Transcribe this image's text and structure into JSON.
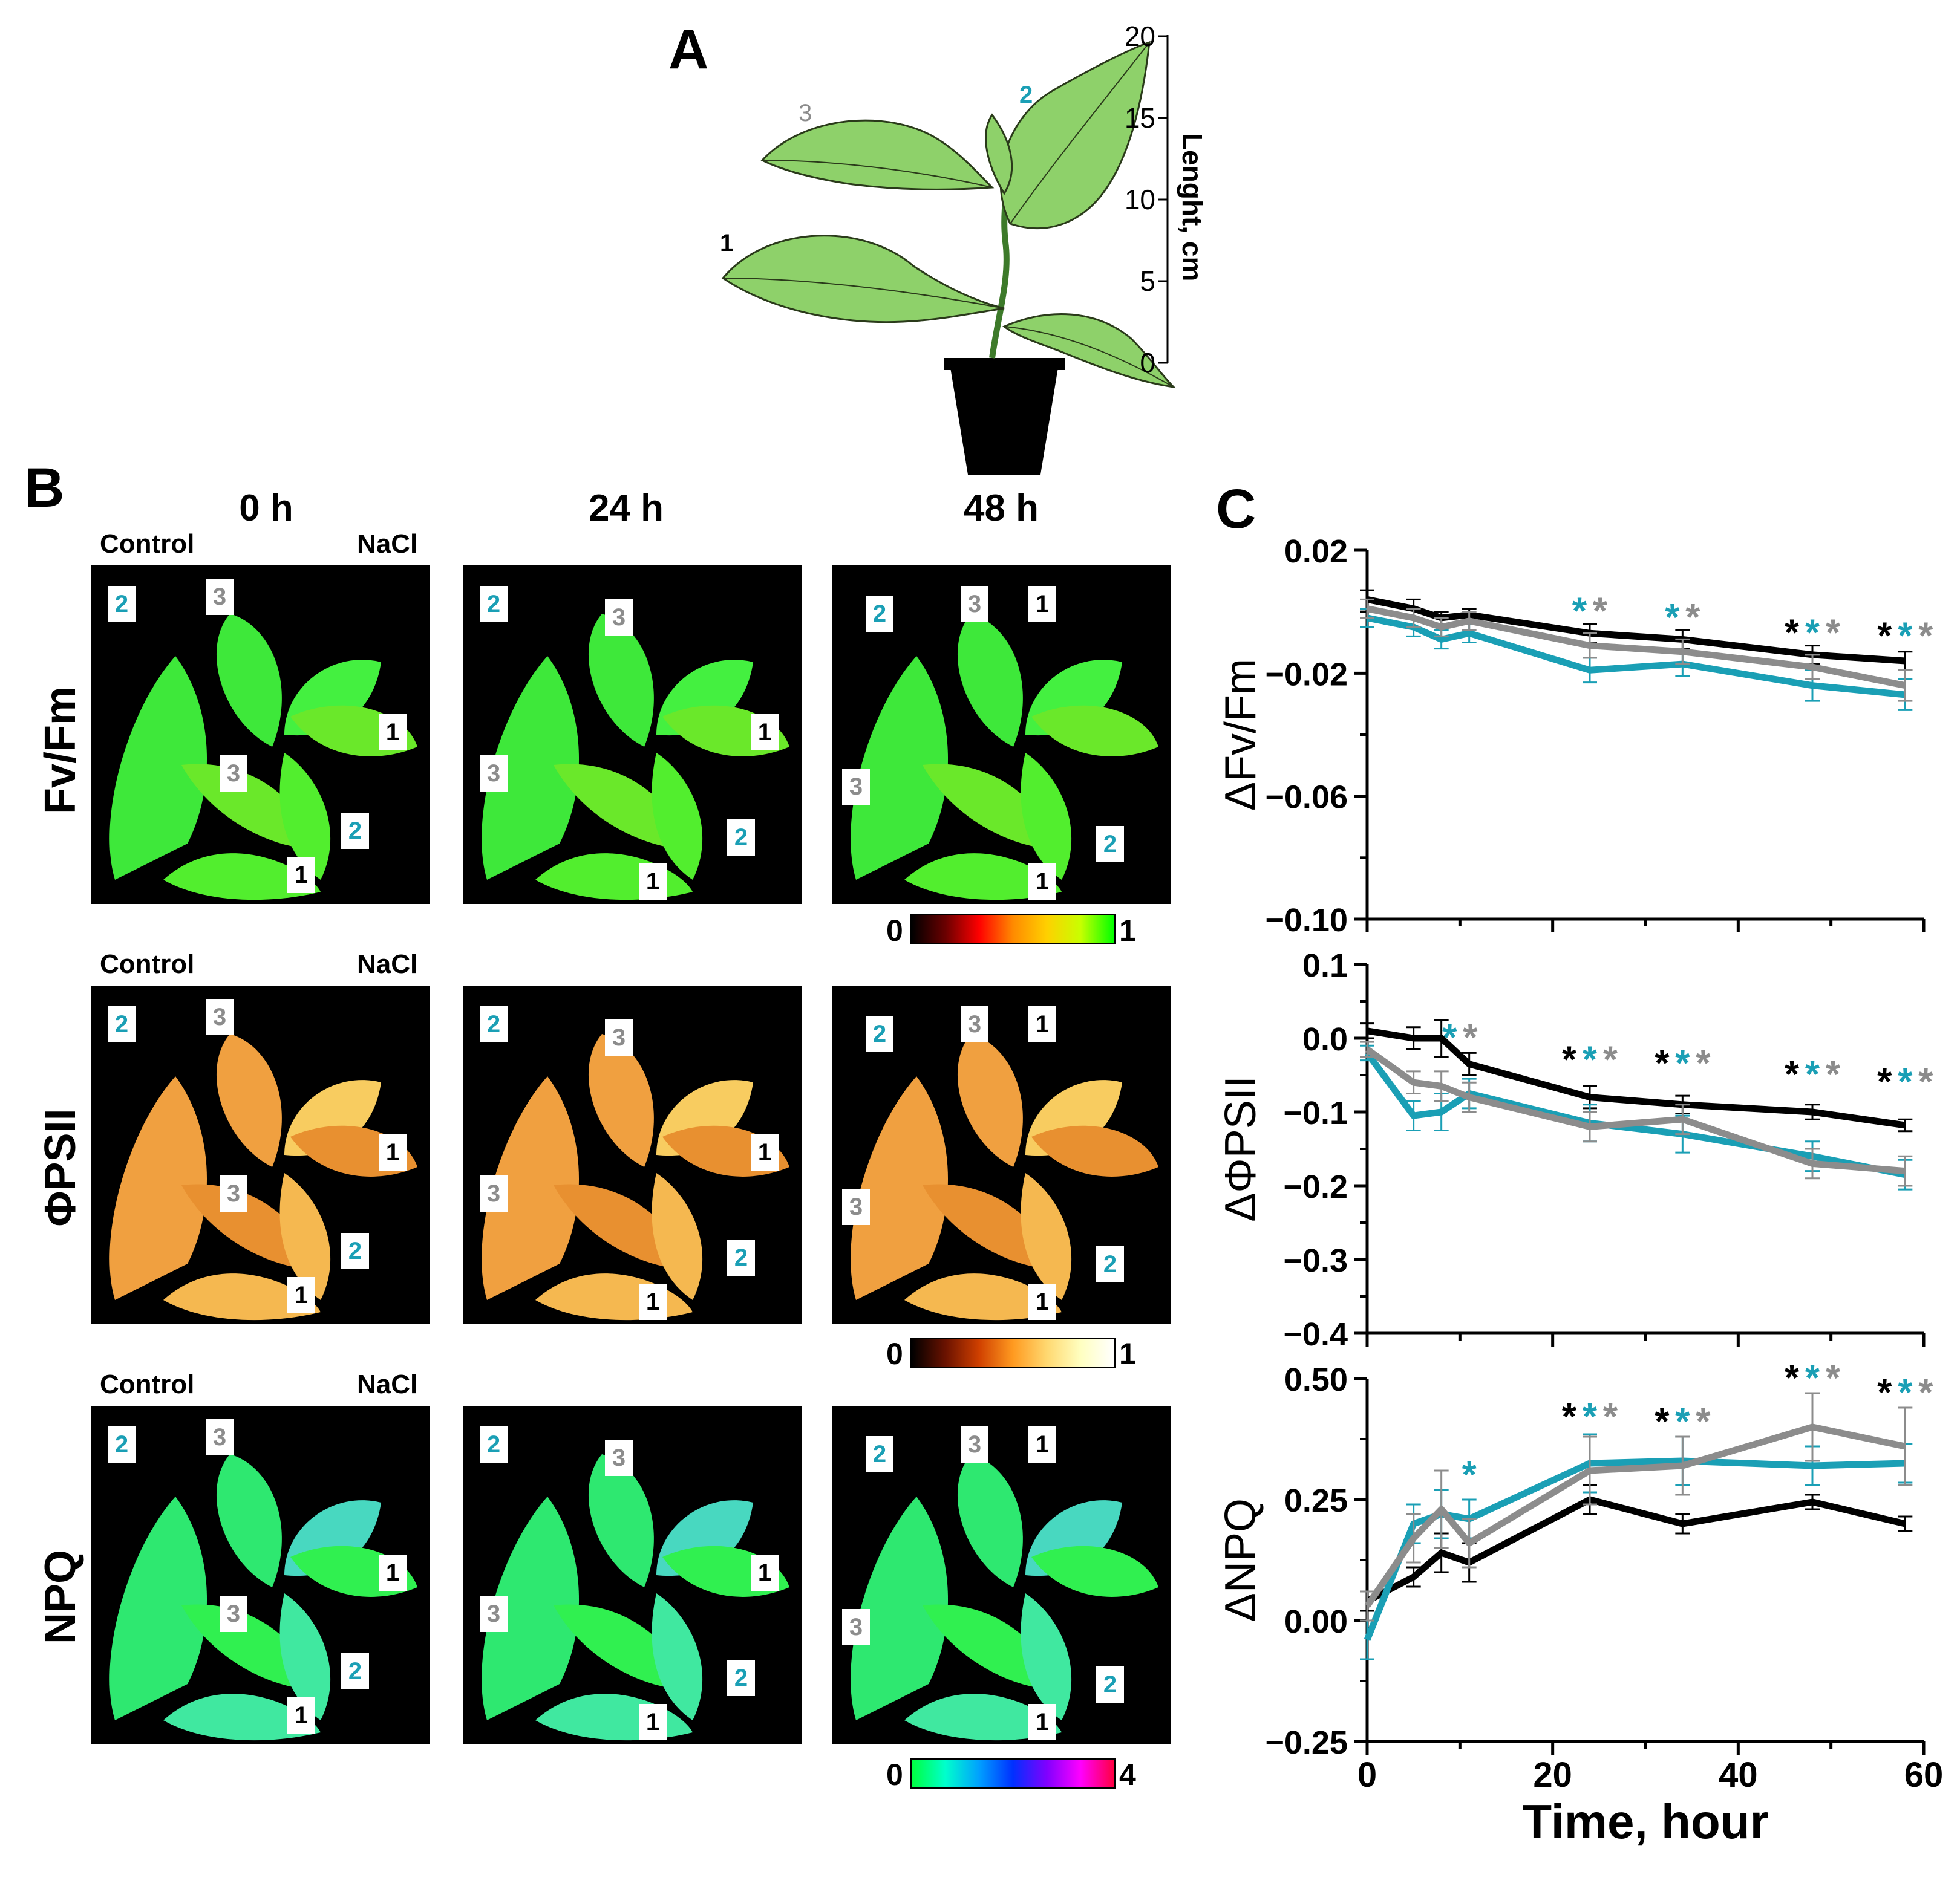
{
  "panels": {
    "a": "A",
    "b": "B",
    "c": "C"
  },
  "plant": {
    "axis_label": "Lenght, cm",
    "ticks": [
      "0",
      "5",
      "10",
      "15",
      "20"
    ],
    "leaf_labels": [
      "1",
      "2",
      "3"
    ]
  },
  "colors": {
    "black": "#000000",
    "gray": "#8c8c8c",
    "cyan": "#1a9fb5"
  },
  "images": {
    "time_headers": [
      "0 h",
      "24 h",
      "48 h"
    ],
    "control_label": "Control",
    "nacl_label": "NaCl",
    "rows": [
      {
        "label": "Fv/Fm",
        "cbar_min": "0",
        "cbar_max": "1"
      },
      {
        "label": "ΦPSII",
        "cbar_min": "0",
        "cbar_max": "1"
      },
      {
        "label": "NPQ",
        "cbar_min": "0",
        "cbar_max": "4"
      }
    ],
    "tags": [
      "1",
      "2",
      "3"
    ]
  },
  "chart_data": [
    {
      "type": "line",
      "ylabel": "ΔFv/Fm",
      "ylim": [
        -0.1,
        0.02
      ],
      "yticks": [
        -0.1,
        -0.06,
        -0.02,
        0.02
      ],
      "ytick_labels": [
        "−0.10",
        "−0.06",
        "−0.02",
        "0.02"
      ],
      "xlim": [
        0,
        60
      ],
      "series": [
        {
          "name": "leaf 1",
          "color": "black",
          "x": [
            0,
            5,
            8,
            11,
            24,
            34,
            48,
            58
          ],
          "y": [
            0.004,
            0.001,
            -0.002,
            -0.001,
            -0.007,
            -0.009,
            -0.014,
            -0.016
          ],
          "err": [
            0.003,
            0.003,
            0.002,
            0.002,
            0.003,
            0.003,
            0.003,
            0.003
          ]
        },
        {
          "name": "leaf 2",
          "color": "cyan",
          "x": [
            0,
            5,
            8,
            11,
            24,
            34,
            48,
            58
          ],
          "y": [
            -0.002,
            -0.005,
            -0.009,
            -0.007,
            -0.019,
            -0.017,
            -0.024,
            -0.027
          ],
          "err": [
            0.003,
            0.003,
            0.003,
            0.003,
            0.004,
            0.004,
            0.005,
            0.005
          ]
        },
        {
          "name": "leaf 3",
          "color": "gray",
          "x": [
            0,
            5,
            8,
            11,
            24,
            34,
            48,
            58
          ],
          "y": [
            0.001,
            -0.002,
            -0.005,
            -0.003,
            -0.011,
            -0.013,
            -0.018,
            -0.024
          ],
          "err": [
            0.003,
            0.003,
            0.003,
            0.003,
            0.004,
            0.004,
            0.004,
            0.005
          ]
        }
      ],
      "stars": [
        {
          "x": 24,
          "y": 0.0,
          "marks": [
            "cyan",
            "gray"
          ]
        },
        {
          "x": 34,
          "y": -0.002,
          "marks": [
            "cyan",
            "gray"
          ]
        },
        {
          "x": 48,
          "y": -0.007,
          "marks": [
            "black",
            "cyan",
            "gray"
          ]
        },
        {
          "x": 58,
          "y": -0.008,
          "marks": [
            "black",
            "cyan",
            "gray"
          ]
        }
      ]
    },
    {
      "type": "line",
      "ylabel": "ΔΦPSII",
      "ylim": [
        -0.4,
        0.1
      ],
      "yticks": [
        -0.4,
        -0.3,
        -0.2,
        -0.1,
        0.0,
        0.1
      ],
      "ytick_labels": [
        "−0.4",
        "−0.3",
        "−0.2",
        "−0.1",
        "0.0",
        "0.1"
      ],
      "xlim": [
        0,
        60
      ],
      "series": [
        {
          "name": "leaf 1",
          "color": "black",
          "x": [
            0,
            5,
            8,
            11,
            24,
            34,
            48,
            58
          ],
          "y": [
            0.01,
            0.0,
            0.0,
            -0.035,
            -0.08,
            -0.09,
            -0.1,
            -0.118
          ],
          "err": [
            0.01,
            0.015,
            0.025,
            0.015,
            0.015,
            0.012,
            0.01,
            0.008
          ]
        },
        {
          "name": "leaf 2",
          "color": "cyan",
          "x": [
            0,
            5,
            8,
            11,
            24,
            34,
            48,
            58
          ],
          "y": [
            -0.02,
            -0.105,
            -0.1,
            -0.075,
            -0.115,
            -0.13,
            -0.16,
            -0.185
          ],
          "err": [
            0.01,
            0.02,
            0.025,
            0.02,
            0.025,
            0.025,
            0.02,
            0.02
          ]
        },
        {
          "name": "leaf 3",
          "color": "gray",
          "x": [
            0,
            5,
            8,
            11,
            24,
            34,
            48,
            58
          ],
          "y": [
            -0.015,
            -0.06,
            -0.065,
            -0.08,
            -0.12,
            -0.11,
            -0.17,
            -0.18
          ],
          "err": [
            0.01,
            0.015,
            0.02,
            0.02,
            0.02,
            0.02,
            0.02,
            0.02
          ]
        }
      ],
      "stars": [
        {
          "x": 10,
          "y": 0.0,
          "marks": [
            "cyan",
            "gray"
          ]
        },
        {
          "x": 24,
          "y": -0.03,
          "marks": [
            "black",
            "cyan",
            "gray"
          ]
        },
        {
          "x": 34,
          "y": -0.035,
          "marks": [
            "black",
            "cyan",
            "gray"
          ]
        },
        {
          "x": 48,
          "y": -0.05,
          "marks": [
            "black",
            "cyan",
            "gray"
          ]
        },
        {
          "x": 58,
          "y": -0.06,
          "marks": [
            "black",
            "cyan",
            "gray"
          ]
        }
      ]
    },
    {
      "type": "line",
      "ylabel": "ΔNPQ",
      "ylim": [
        -0.25,
        0.5
      ],
      "yticks": [
        -0.25,
        0.0,
        0.25,
        0.5
      ],
      "ytick_labels": [
        "−0.25",
        "0.00",
        "0.25",
        "0.50"
      ],
      "xlim": [
        0,
        60
      ],
      "xticks": [
        0,
        20,
        40,
        60
      ],
      "xtick_labels": [
        "0",
        "20",
        "40",
        "60"
      ],
      "xlabel": "Time, hour",
      "series": [
        {
          "name": "leaf 1",
          "color": "black",
          "x": [
            0,
            5,
            8,
            11,
            24,
            34,
            48,
            58
          ],
          "y": [
            0.04,
            0.09,
            0.14,
            0.12,
            0.25,
            0.2,
            0.245,
            0.2
          ],
          "err": [
            0.02,
            0.02,
            0.04,
            0.04,
            0.03,
            0.02,
            0.015,
            0.015
          ]
        },
        {
          "name": "leaf 2",
          "color": "cyan",
          "x": [
            0,
            5,
            8,
            11,
            24,
            34,
            48,
            58
          ],
          "y": [
            -0.04,
            0.2,
            0.22,
            0.21,
            0.325,
            0.33,
            0.32,
            0.325
          ],
          "err": [
            0.04,
            0.04,
            0.05,
            0.04,
            0.06,
            0.05,
            0.04,
            0.04
          ]
        },
        {
          "name": "leaf 3",
          "color": "gray",
          "x": [
            0,
            5,
            8,
            11,
            24,
            34,
            48,
            58
          ],
          "y": [
            0.03,
            0.17,
            0.23,
            0.16,
            0.31,
            0.32,
            0.4,
            0.36
          ],
          "err": [
            0.03,
            0.05,
            0.08,
            0.05,
            0.07,
            0.06,
            0.07,
            0.08
          ]
        }
      ],
      "stars": [
        {
          "x": 11,
          "y": 0.3,
          "marks": [
            "cyan"
          ]
        },
        {
          "x": 24,
          "y": 0.42,
          "marks": [
            "black",
            "cyan",
            "gray"
          ]
        },
        {
          "x": 34,
          "y": 0.41,
          "marks": [
            "black",
            "cyan",
            "gray"
          ]
        },
        {
          "x": 48,
          "y": 0.5,
          "marks": [
            "black",
            "cyan",
            "gray"
          ]
        },
        {
          "x": 58,
          "y": 0.47,
          "marks": [
            "black",
            "cyan",
            "gray"
          ]
        }
      ]
    }
  ]
}
